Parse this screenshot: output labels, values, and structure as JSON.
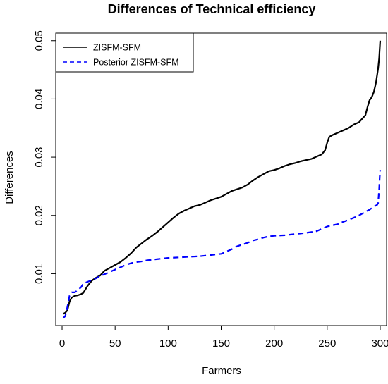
{
  "chart_data": {
    "type": "line",
    "title": "Differences of Technical efficiency",
    "xlabel": "Farmers",
    "ylabel": "Differences",
    "xlim": [
      -6,
      306
    ],
    "ylim": [
      0.0011,
      0.0513
    ],
    "x_ticks": [
      0,
      50,
      100,
      150,
      200,
      250,
      300
    ],
    "y_ticks": [
      0.01,
      0.02,
      0.03,
      0.04,
      0.05
    ],
    "x_tick_labels": [
      "0",
      "50",
      "100",
      "150",
      "200",
      "250",
      "300"
    ],
    "y_tick_labels": [
      "0.01",
      "0.02",
      "0.03",
      "0.04",
      "0.05"
    ],
    "grid": false,
    "legend_position": "top-left",
    "series": [
      {
        "name": "ZISFM-SFM",
        "color": "#000000",
        "line_style": "solid",
        "x": [
          1,
          3,
          5,
          7,
          9,
          12,
          15,
          18,
          20,
          24,
          28,
          32,
          36,
          40,
          45,
          50,
          55,
          60,
          65,
          70,
          75,
          80,
          85,
          90,
          95,
          100,
          105,
          110,
          115,
          120,
          125,
          130,
          135,
          140,
          145,
          150,
          155,
          160,
          165,
          170,
          175,
          180,
          185,
          190,
          195,
          200,
          205,
          210,
          215,
          220,
          225,
          230,
          235,
          240,
          245,
          248,
          250,
          252,
          255,
          260,
          265,
          270,
          275,
          280,
          283,
          286,
          288,
          290,
          292,
          294,
          296,
          297,
          298,
          299,
          300
        ],
        "y": [
          0.0031,
          0.0033,
          0.0037,
          0.0052,
          0.0059,
          0.0062,
          0.0063,
          0.0065,
          0.0067,
          0.0079,
          0.0088,
          0.0093,
          0.0097,
          0.0105,
          0.011,
          0.0115,
          0.012,
          0.0127,
          0.0135,
          0.0145,
          0.0152,
          0.0159,
          0.0165,
          0.0172,
          0.018,
          0.0188,
          0.0196,
          0.0203,
          0.0208,
          0.0212,
          0.0216,
          0.0218,
          0.0222,
          0.0226,
          0.0229,
          0.0232,
          0.0237,
          0.0242,
          0.0245,
          0.0248,
          0.0253,
          0.026,
          0.0266,
          0.0271,
          0.0276,
          0.0278,
          0.0281,
          0.0285,
          0.0288,
          0.029,
          0.0293,
          0.0295,
          0.0297,
          0.0301,
          0.0305,
          0.0312,
          0.0325,
          0.0335,
          0.0338,
          0.0342,
          0.0346,
          0.035,
          0.0356,
          0.036,
          0.0366,
          0.0372,
          0.0386,
          0.0398,
          0.0403,
          0.0412,
          0.0428,
          0.044,
          0.0452,
          0.047,
          0.05
        ]
      },
      {
        "name": "Posterior ZISFM-SFM",
        "color": "#0000ff",
        "line_style": "dashed",
        "x": [
          1,
          3,
          5,
          7,
          9,
          12,
          15,
          18,
          20,
          24,
          28,
          32,
          36,
          40,
          45,
          50,
          55,
          60,
          65,
          70,
          75,
          80,
          85,
          90,
          95,
          100,
          110,
          120,
          130,
          140,
          150,
          155,
          160,
          165,
          170,
          175,
          180,
          185,
          190,
          195,
          200,
          210,
          220,
          230,
          240,
          245,
          250,
          255,
          260,
          265,
          270,
          275,
          280,
          285,
          290,
          294,
          297,
          298,
          299,
          299.5,
          300
        ],
        "y": [
          0.0024,
          0.0027,
          0.0043,
          0.0062,
          0.0068,
          0.0068,
          0.0072,
          0.0077,
          0.0083,
          0.0086,
          0.0089,
          0.0092,
          0.0096,
          0.0099,
          0.0103,
          0.0107,
          0.0111,
          0.0115,
          0.0118,
          0.012,
          0.0121,
          0.0123,
          0.0124,
          0.0125,
          0.0126,
          0.0127,
          0.0128,
          0.0129,
          0.013,
          0.0132,
          0.0134,
          0.0138,
          0.0142,
          0.0147,
          0.015,
          0.0153,
          0.0157,
          0.0159,
          0.0162,
          0.0164,
          0.0165,
          0.0166,
          0.0168,
          0.017,
          0.0173,
          0.0177,
          0.0181,
          0.0183,
          0.0185,
          0.0189,
          0.0192,
          0.0196,
          0.02,
          0.0205,
          0.021,
          0.0215,
          0.0218,
          0.0221,
          0.0245,
          0.0265,
          0.0278
        ]
      }
    ]
  }
}
